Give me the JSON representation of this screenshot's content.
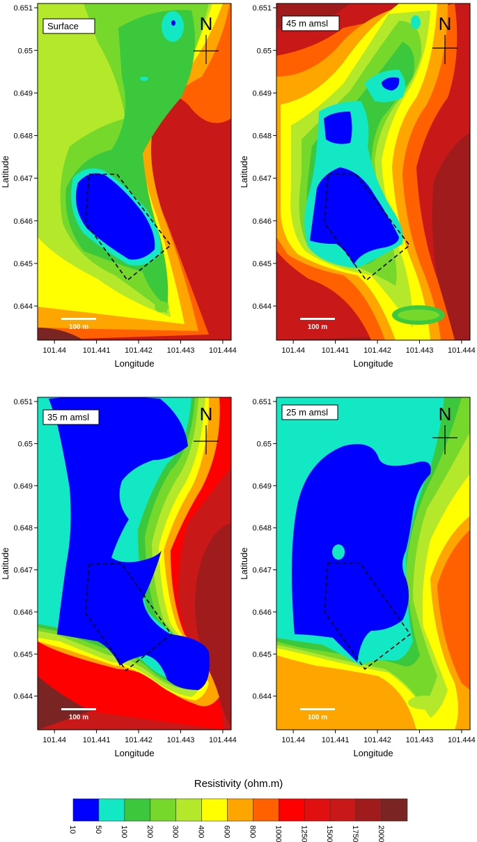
{
  "axes": {
    "x_label": "Longitude",
    "y_label": "Latitude",
    "x_ticks": [
      "101.44",
      "101.441",
      "101.442",
      "101.443",
      "101.444"
    ],
    "y_ticks": [
      "0.651",
      "0.65",
      "0.649",
      "0.648",
      "0.647",
      "0.646",
      "0.645",
      "0.644"
    ],
    "x_tick_values": [
      101.44,
      101.441,
      101.442,
      101.443,
      101.444
    ],
    "y_tick_values": [
      0.651,
      0.65,
      0.649,
      0.648,
      0.647,
      0.646,
      0.645,
      0.644
    ],
    "x_range": [
      101.4396,
      101.4442
    ],
    "y_range": [
      0.6432,
      0.6511
    ]
  },
  "north_label": "N",
  "scale_bar_label": "100 m",
  "panels": [
    {
      "id": "surface",
      "label": "Surface"
    },
    {
      "id": "45m",
      "label": "45 m amsl"
    },
    {
      "id": "35m",
      "label": "35 m amsl"
    },
    {
      "id": "25m",
      "label": "25 m amsl"
    }
  ],
  "legend": {
    "title": "Resistivity (ohm.m)",
    "ticks": [
      "10",
      "50",
      "100",
      "200",
      "300",
      "400",
      "600",
      "800",
      "1000",
      "1250",
      "1500",
      "1750",
      "2000"
    ],
    "colors": [
      "#0000ff",
      "#13e8c4",
      "#3cc83c",
      "#76d82a",
      "#b4e82a",
      "#ffff00",
      "#ffa500",
      "#ff6000",
      "#ff0000",
      "#e01010",
      "#c81818",
      "#a01c1c",
      "#7a2424"
    ]
  }
}
